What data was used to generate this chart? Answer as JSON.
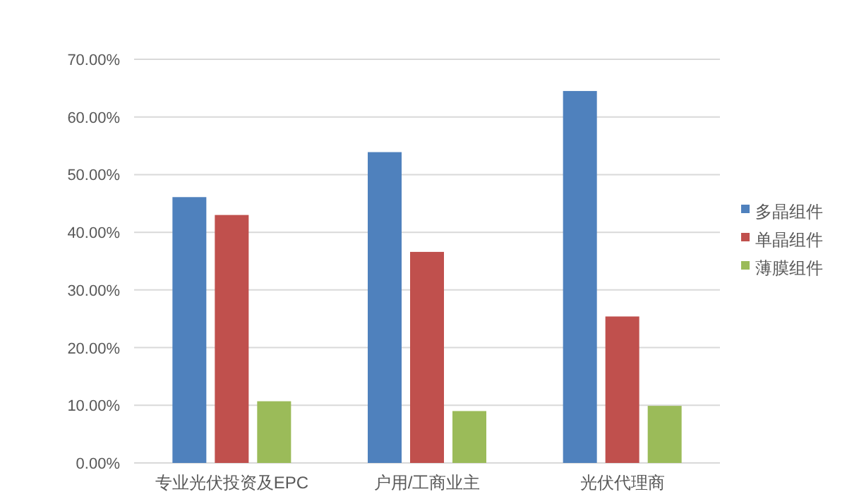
{
  "chart_data": {
    "type": "bar",
    "categories": [
      "专业光伏投资及EPC",
      "户用/工商业主",
      "光伏代理商"
    ],
    "series": [
      {
        "name": "多晶组件",
        "color": "#4f81bd",
        "values": [
          46.1,
          53.9,
          64.5
        ]
      },
      {
        "name": "单晶组件",
        "color": "#c0504d",
        "values": [
          43.0,
          36.6,
          25.4
        ]
      },
      {
        "name": "薄膜组件",
        "color": "#9bbb59",
        "values": [
          10.7,
          9.0,
          9.9
        ]
      }
    ],
    "ylim": [
      0,
      70
    ],
    "yticks": [
      {
        "value": 0,
        "label": "0.00%"
      },
      {
        "value": 10,
        "label": "10.00%"
      },
      {
        "value": 20,
        "label": "20.00%"
      },
      {
        "value": 30,
        "label": "30.00%"
      },
      {
        "value": 40,
        "label": "40.00%"
      },
      {
        "value": 50,
        "label": "50.00%"
      },
      {
        "value": 60,
        "label": "60.00%"
      },
      {
        "value": 70,
        "label": "70.00%"
      }
    ],
    "grid": "y",
    "legend": "right"
  }
}
